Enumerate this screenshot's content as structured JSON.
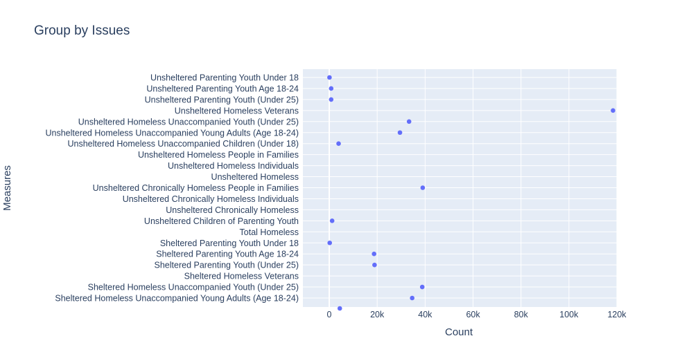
{
  "chart_data": {
    "type": "scatter",
    "title": "Group by Issues",
    "xlabel": "Count",
    "ylabel": "Measures",
    "xlim": [
      -11000,
      120000
    ],
    "xticks": [
      0,
      20000,
      40000,
      60000,
      80000,
      100000,
      120000
    ],
    "xtick_labels": [
      "0",
      "20k",
      "40k",
      "60k",
      "80k",
      "100k",
      "120k"
    ],
    "grid": true,
    "marker_color": "#636efa",
    "plot_bg": "#e5ecf6",
    "categories": [
      "Unsheltered Parenting Youth Under 18",
      "Unsheltered Parenting Youth Age 18-24",
      "Unsheltered Parenting Youth (Under 25)",
      "Unsheltered Homeless Veterans",
      "Unsheltered Homeless Unaccompanied Youth (Under 25)",
      "Unsheltered Homeless Unaccompanied Young Adults (Age 18-24)",
      "Unsheltered Homeless Unaccompanied Children (Under 18)",
      "Unsheltered Homeless People in Families",
      "Unsheltered Homeless Individuals",
      "Unsheltered Homeless",
      "Unsheltered Chronically Homeless People in Families",
      "Unsheltered Chronically Homeless Individuals",
      "Unsheltered Chronically Homeless",
      "Unsheltered Children of Parenting Youth",
      "Total Homeless",
      "Sheltered Parenting Youth Under 18",
      "Sheltered Parenting Youth Age 18-24",
      "Sheltered Parenting Youth (Under 25)",
      "Sheltered Homeless Veterans",
      "Sheltered Homeless Unaccompanied Youth (Under 25)",
      "Sheltered Homeless Unaccompanied Young Adults (Age 18-24)"
    ],
    "values": [
      100,
      800,
      800,
      118400,
      33300,
      29500,
      3900,
      null,
      null,
      null,
      39000,
      null,
      null,
      1200,
      null,
      200,
      18700,
      18900,
      null,
      38800,
      34600
    ],
    "partial_point": {
      "value": 4400
    }
  }
}
